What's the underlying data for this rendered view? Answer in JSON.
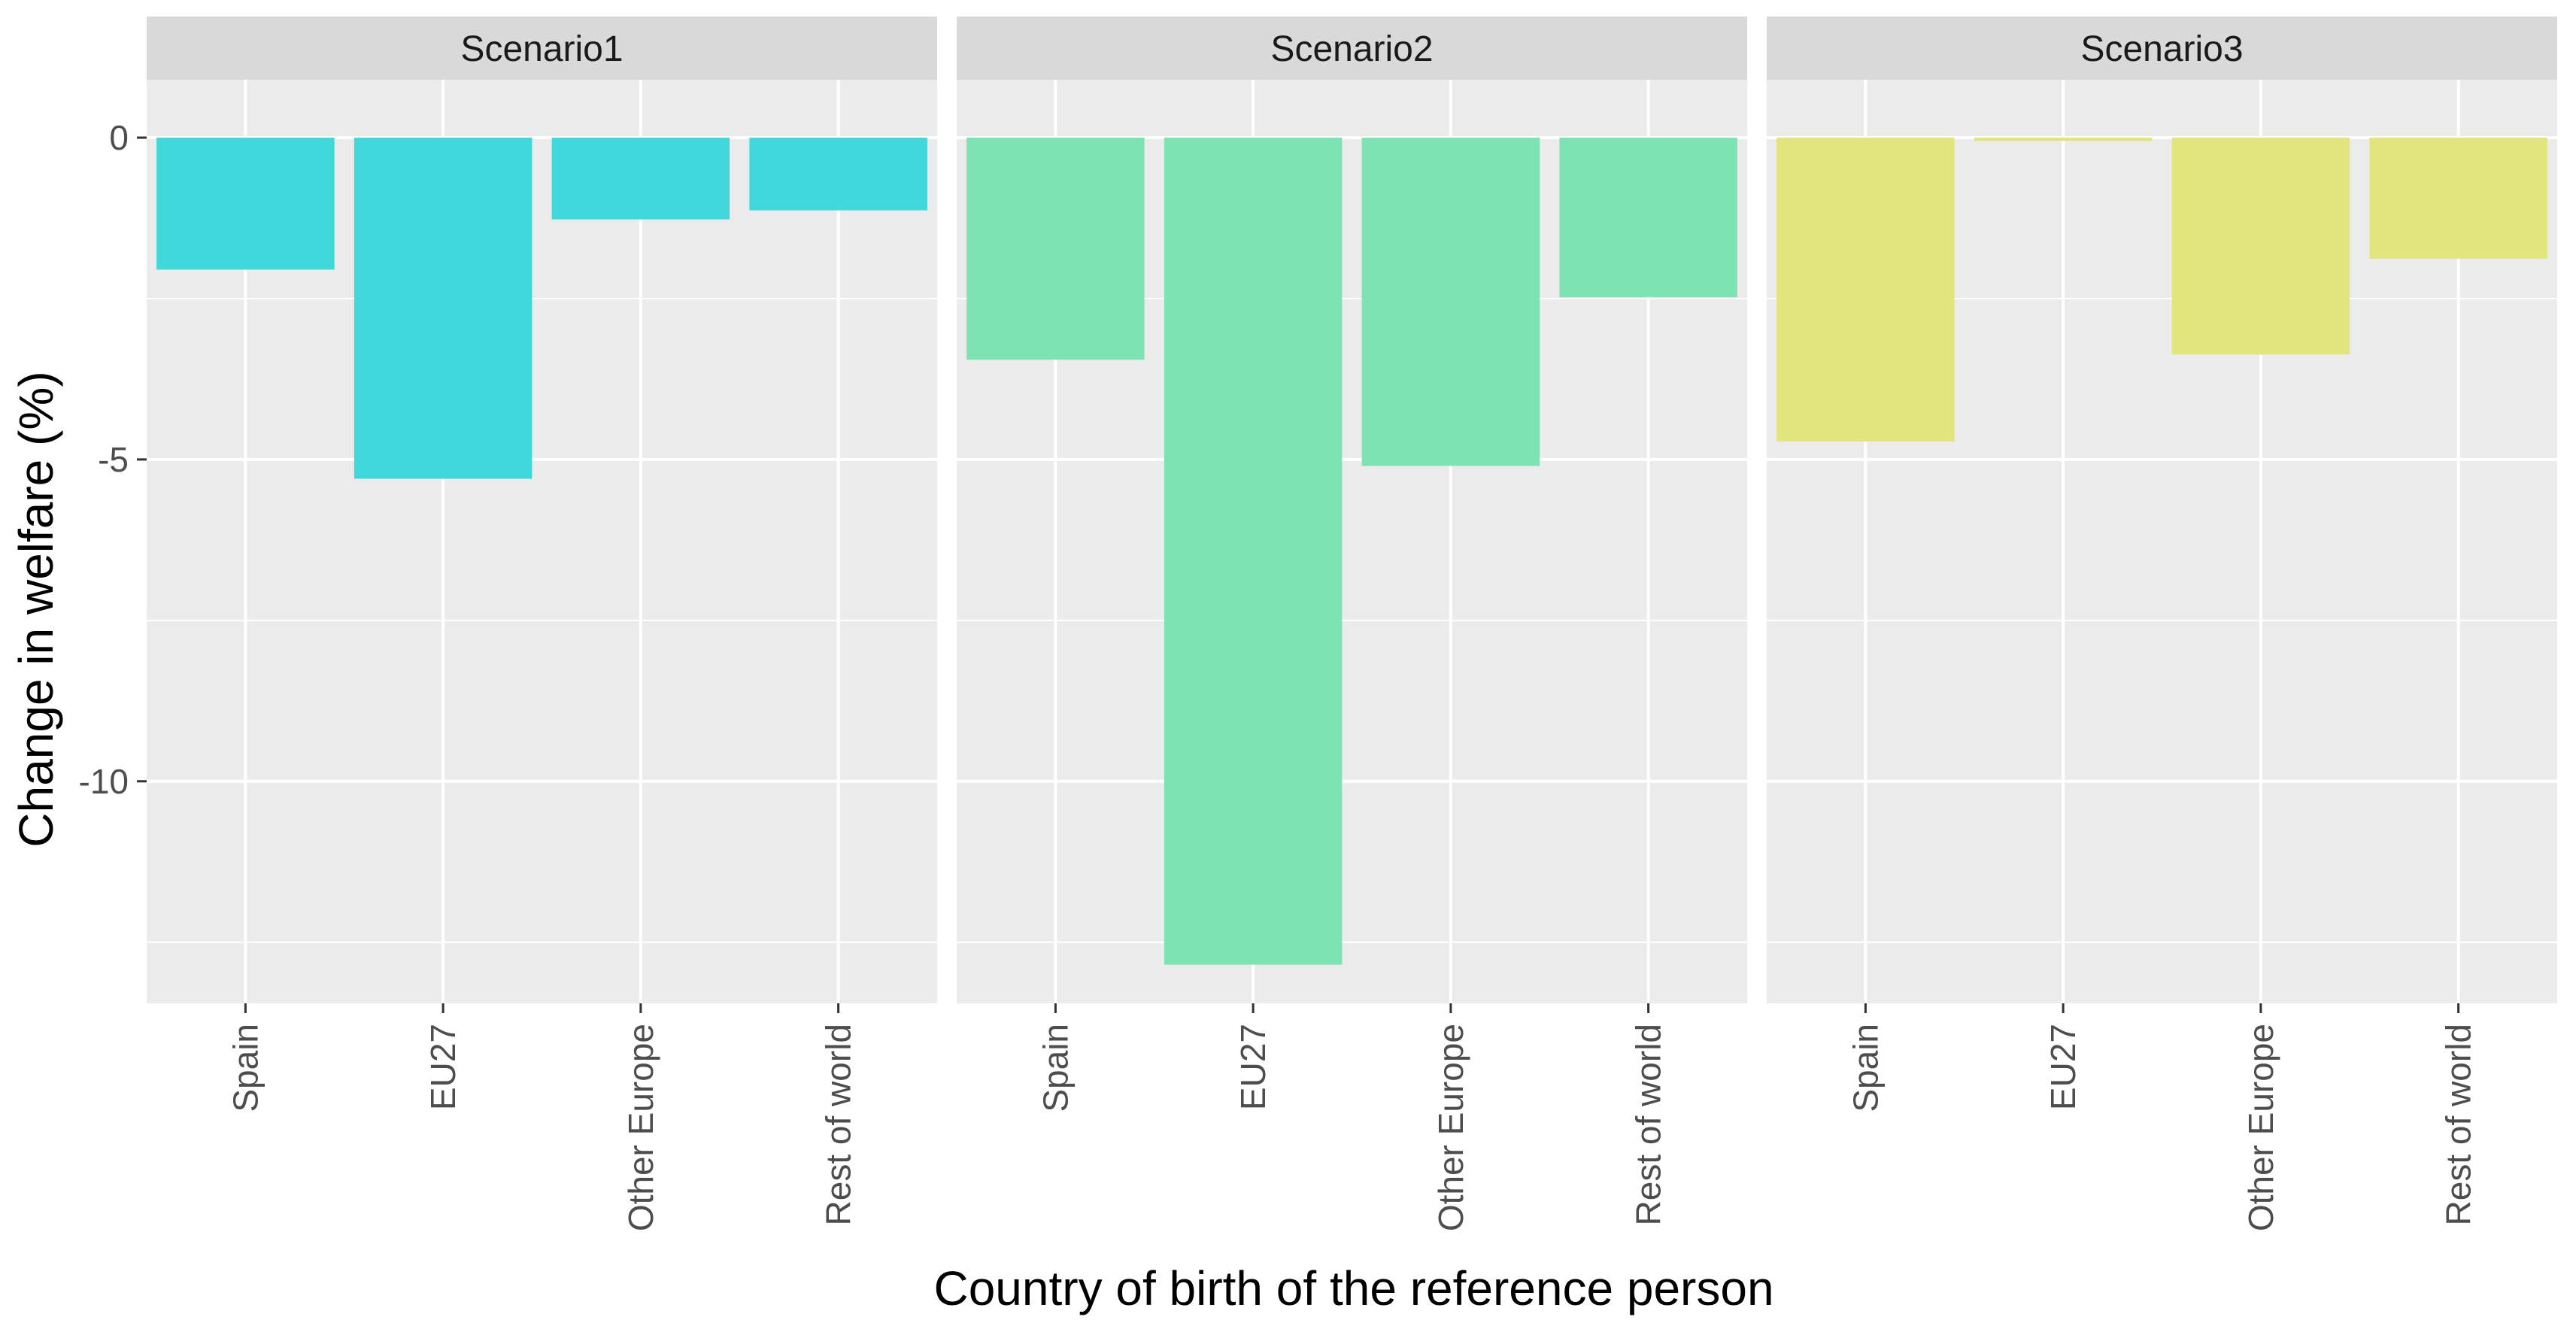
{
  "chart_data": {
    "type": "bar",
    "facets": [
      "Scenario1",
      "Scenario2",
      "Scenario3"
    ],
    "categories": [
      "Spain",
      "EU27",
      "Other Europe",
      "Rest of world"
    ],
    "series": [
      {
        "facet": "Scenario1",
        "color": "#40D8DA",
        "values": [
          -2.05,
          -5.3,
          -1.27,
          -1.13
        ]
      },
      {
        "facet": "Scenario2",
        "color": "#7EE3B3",
        "values": [
          -3.45,
          -12.85,
          -5.1,
          -2.48
        ]
      },
      {
        "facet": "Scenario3",
        "color": "#E2E57E",
        "values": [
          -4.72,
          -0.05,
          -3.37,
          -1.88
        ]
      }
    ],
    "xlabel": "Country of birth of the reference person",
    "ylabel": "Change in welfare (%)",
    "ylim": [
      -13.45,
      0.9
    ],
    "yticks": [
      0,
      -5,
      -10
    ],
    "ytick_labels": [
      "0",
      "-5",
      "-10"
    ],
    "grid": true,
    "panel_background": "#EBEBEB",
    "strip_background": "#D9D9D9"
  }
}
